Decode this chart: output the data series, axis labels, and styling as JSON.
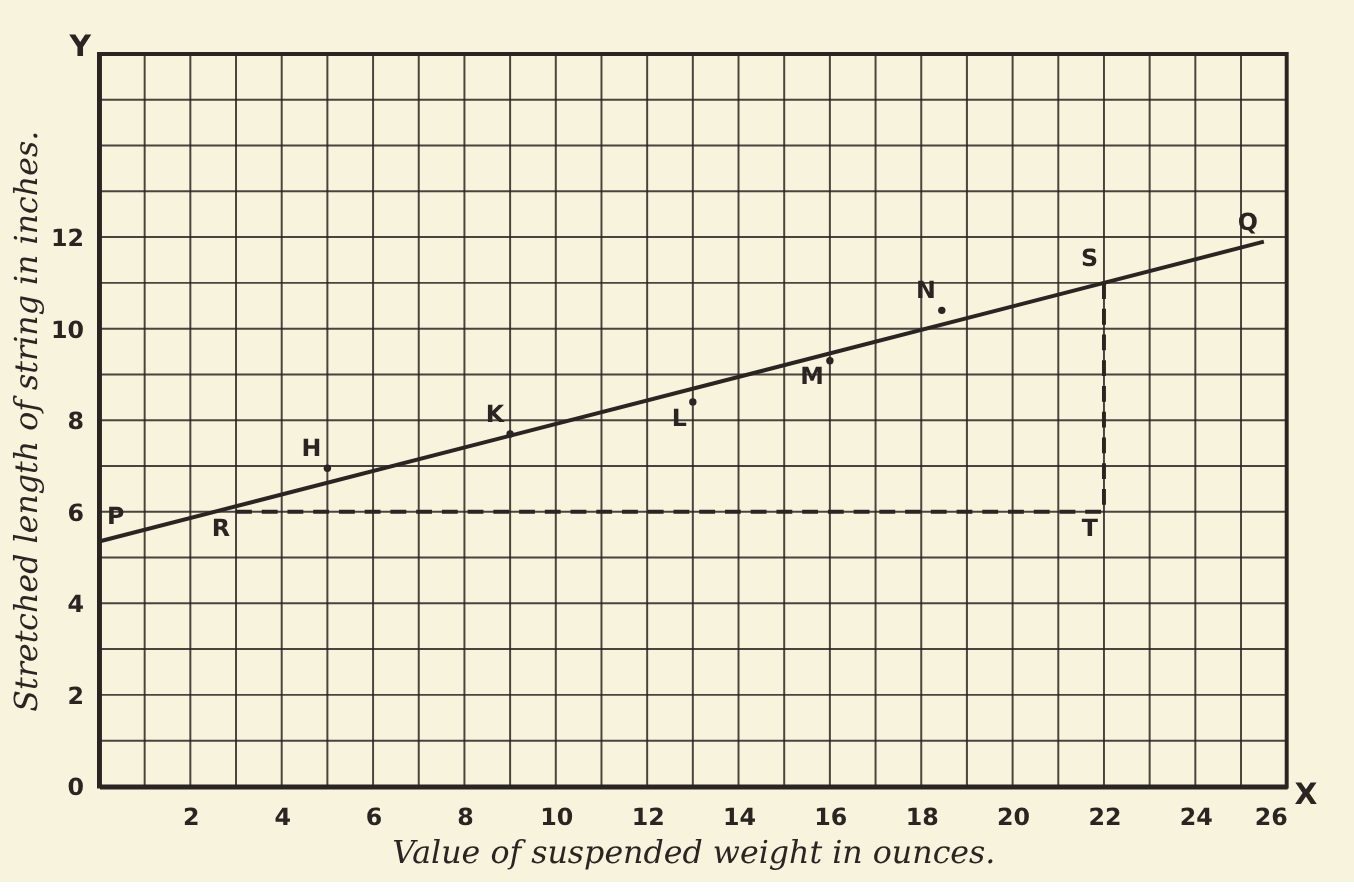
{
  "chart_data": {
    "type": "line",
    "xlabel": "Value of suspended weight in ounces.",
    "ylabel": "Stretched length of string in inches.",
    "xlim": [
      0,
      26
    ],
    "ylim": [
      0,
      16
    ],
    "xticks": [
      {
        "value": 0,
        "label": null
      },
      {
        "value": 1,
        "label": null
      },
      2,
      {
        "value": 3,
        "label": null
      },
      4,
      {
        "value": 5,
        "label": null
      },
      6,
      {
        "value": 7,
        "label": null
      },
      8,
      {
        "value": 9,
        "label": null
      },
      10,
      {
        "value": 11,
        "label": null
      },
      12,
      {
        "value": 13,
        "label": null
      },
      14,
      {
        "value": 15,
        "label": null
      },
      16,
      {
        "value": 17,
        "label": null
      },
      18,
      {
        "value": 19,
        "label": null
      },
      20,
      {
        "value": 21,
        "label": null
      },
      22,
      {
        "value": 23,
        "label": null
      },
      24,
      {
        "value": 25,
        "label": null
      },
      26
    ],
    "yticks": [
      0,
      {
        "value": 1,
        "label": null
      },
      2,
      {
        "value": 3,
        "label": null
      },
      4,
      {
        "value": 5,
        "label": null
      },
      6,
      {
        "value": 7,
        "label": null
      },
      8,
      {
        "value": 9,
        "label": null
      },
      10,
      {
        "value": 11,
        "label": null
      },
      12,
      {
        "value": 13,
        "label": null
      },
      {
        "value": 14,
        "label": null
      },
      {
        "value": 15,
        "label": null
      },
      {
        "value": 16,
        "label": null
      }
    ],
    "grid": true,
    "series": [
      {
        "color": "#2a2522",
        "x": [
          0,
          25.5
        ],
        "values": [
          5.35,
          11.9
        ],
        "line_style": "solid"
      },
      {
        "color": "#2a2522",
        "x": [
          3,
          22,
          22
        ],
        "values": [
          6,
          6,
          11.1
        ],
        "line_style": "dashed"
      },
      {
        "type": "scatter",
        "color": "#2a2522",
        "x": [
          5,
          9,
          13,
          16,
          18.45
        ],
        "values": [
          6.95,
          7.7,
          8.4,
          9.3,
          10.4
        ],
        "marker": "circle"
      }
    ],
    "annotations": [
      "X",
      "Y",
      {
        "text": "P",
        "x": 0,
        "y": 5.35
      },
      {
        "text": "R",
        "x": 3,
        "y": 6
      },
      {
        "text": "H",
        "x": 5,
        "y": 6.95
      },
      {
        "text": "K",
        "x": 9,
        "y": 7.7
      },
      {
        "text": "L",
        "x": 13,
        "y": 8.4
      },
      {
        "text": "M",
        "x": 16,
        "y": 9.3
      },
      {
        "text": "N",
        "x": 18.45,
        "y": 10.4
      },
      {
        "text": "S",
        "x": 22,
        "y": 11.1
      },
      {
        "text": "T",
        "x": 22,
        "y": 6
      },
      {
        "text": "Q",
        "x": 25.5,
        "y": 11.9
      }
    ]
  }
}
